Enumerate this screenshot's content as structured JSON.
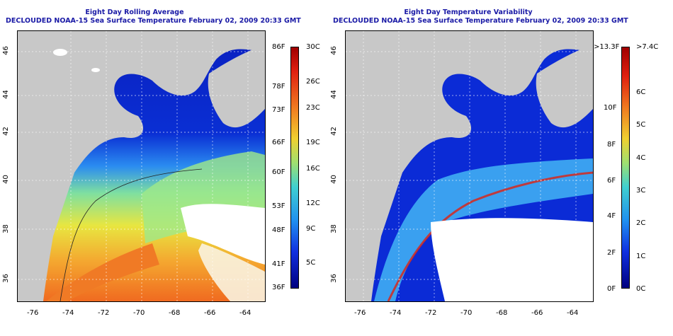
{
  "left_panel": {
    "title_line1": "Eight Day Rolling Average",
    "title_line2": "DECLOUDED NOAA-15 Sea Surface Temperature February 02, 2009 20:33 GMT",
    "colorbar_left_labels": [
      "86F",
      "78F",
      "73F",
      "66F",
      "60F",
      "53F",
      "48F",
      "41F",
      "36F"
    ],
    "colorbar_right_labels": [
      "30C",
      "26C",
      "23C",
      "19C",
      "16C",
      "12C",
      "9C",
      "5C"
    ]
  },
  "right_panel": {
    "title_line1": "Eight Day Temperature Variability",
    "title_line2": "DECLOUDED NOAA-15 Sea Surface Temperature February 02, 2009 20:33 GMT",
    "colorbar_left_labels": [
      ">13.3F",
      "10F",
      "8F",
      "6F",
      "4F",
      "2F",
      "0F"
    ],
    "colorbar_right_labels": [
      ">7.4C",
      "6C",
      "5C",
      "4C",
      "3C",
      "2C",
      "1C",
      "0C"
    ]
  },
  "axes": {
    "lon_ticks": [
      "-76",
      "-74",
      "-72",
      "-70",
      "-68",
      "-66",
      "-64"
    ],
    "lat_ticks": [
      "46",
      "44",
      "42",
      "40",
      "38",
      "36"
    ]
  },
  "colors": {
    "land": "#c8c8c8",
    "title_blue": "#1a1aa6",
    "cloud": "#ffffff",
    "deep_blue": "#0a1fbf",
    "warm_orange": "#f08a2a"
  }
}
